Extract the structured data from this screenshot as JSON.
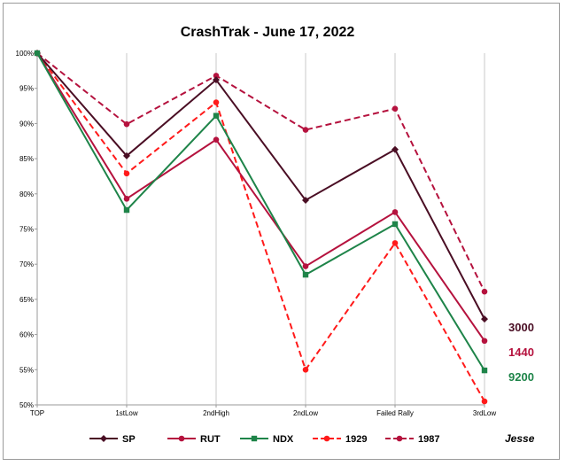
{
  "chart_data": {
    "type": "line",
    "title": "CrashTrak - June 17, 2022",
    "categories": [
      "TOP",
      "1stLow",
      "2ndHigh",
      "2ndLow",
      "Failed Rally",
      "3rdLow"
    ],
    "ylim": [
      50,
      100
    ],
    "yticks": [
      50,
      55,
      60,
      65,
      70,
      75,
      80,
      85,
      90,
      95,
      100
    ],
    "ytick_labels": [
      "50%",
      "55%",
      "60%",
      "65%",
      "70%",
      "75%",
      "80%",
      "85%",
      "90%",
      "95%",
      "100%"
    ],
    "grid": "vertical",
    "legend_position": "bottom",
    "series": [
      {
        "name": "SP",
        "values": [
          100,
          85.4,
          96.2,
          79.1,
          86.3,
          62.2
        ],
        "color": "#4a0e24",
        "marker": "diamond",
        "dash": "solid",
        "end_label": "3000"
      },
      {
        "name": "RUT",
        "values": [
          100,
          79.3,
          87.7,
          69.7,
          77.4,
          59.1
        ],
        "color": "#b5123e",
        "marker": "circle",
        "dash": "solid",
        "end_label": "1440"
      },
      {
        "name": "NDX",
        "values": [
          100,
          77.7,
          91.1,
          68.5,
          75.7,
          54.9
        ],
        "color": "#1e8449",
        "marker": "square",
        "dash": "solid",
        "end_label": "9200"
      },
      {
        "name": "1929",
        "values": [
          100,
          82.9,
          93.0,
          55.0,
          73.0,
          50.5
        ],
        "color": "#ff1a1a",
        "marker": "circle",
        "dash": "dashed",
        "end_label": ""
      },
      {
        "name": "1987",
        "values": [
          100,
          89.9,
          96.8,
          89.1,
          92.1,
          66.1
        ],
        "color": "#b5123e",
        "marker": "circle",
        "dash": "dashed",
        "end_label": ""
      }
    ],
    "signature": "Jesse"
  }
}
